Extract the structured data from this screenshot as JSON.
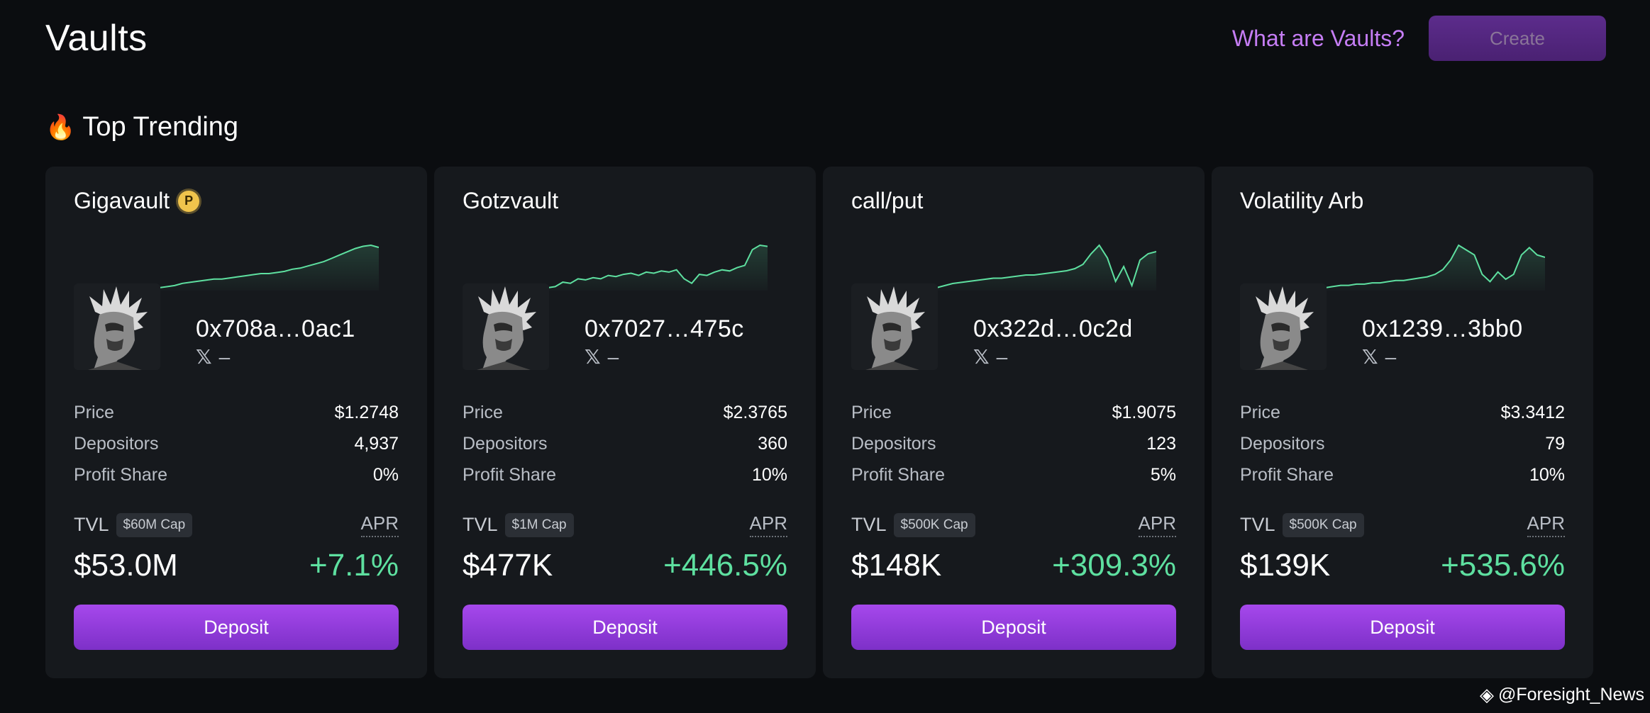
{
  "header": {
    "title": "Vaults",
    "what_link": "What are Vaults?",
    "create_label": "Create"
  },
  "section": {
    "icon": "fire-icon",
    "title": "Top Trending"
  },
  "cards": [
    {
      "name": "Gigavault",
      "badge": "P",
      "address": "0x708a…0ac1",
      "social_handle": "–",
      "price_label": "Price",
      "price": "$1.2748",
      "depositors_label": "Depositors",
      "depositors": "4,937",
      "profit_label": "Profit Share",
      "profit": "0%",
      "tvl_label": "TVL",
      "cap": "$60M Cap",
      "apr_label": "APR",
      "tvl": "$53.0M",
      "apr": "+7.1%",
      "deposit_label": "Deposit",
      "sparkline": [
        4,
        5,
        6,
        8,
        9,
        10,
        11,
        12,
        12,
        13,
        14,
        15,
        16,
        17,
        17,
        18,
        19,
        21,
        22,
        24,
        26,
        28,
        31,
        34,
        37,
        40,
        42,
        43,
        41
      ]
    },
    {
      "name": "Gotzvault",
      "address": "0x7027…475c",
      "social_handle": "–",
      "price_label": "Price",
      "price": "$2.3765",
      "depositors_label": "Depositors",
      "depositors": "360",
      "profit_label": "Profit Share",
      "profit": "10%",
      "tvl_label": "TVL",
      "cap": "$1M Cap",
      "apr_label": "APR",
      "tvl": "$477K",
      "apr": "+446.5%",
      "deposit_label": "Deposit",
      "sparkline": [
        4,
        5,
        9,
        8,
        12,
        11,
        13,
        12,
        15,
        14,
        16,
        17,
        15,
        18,
        17,
        19,
        18,
        20,
        12,
        8,
        16,
        15,
        18,
        20,
        19,
        22,
        24,
        38,
        42,
        41
      ]
    },
    {
      "name": "call/put",
      "address": "0x322d…0c2d",
      "social_handle": "–",
      "price_label": "Price",
      "price": "$1.9075",
      "depositors_label": "Depositors",
      "depositors": "123",
      "profit_label": "Profit Share",
      "profit": "5%",
      "tvl_label": "TVL",
      "cap": "$500K Cap",
      "apr_label": "APR",
      "tvl": "$148K",
      "apr": "+309.3%",
      "deposit_label": "Deposit",
      "sparkline": [
        2,
        4,
        6,
        7,
        8,
        9,
        10,
        11,
        11,
        12,
        13,
        14,
        14,
        15,
        16,
        17,
        18,
        20,
        24,
        34,
        42,
        30,
        8,
        22,
        4,
        28,
        34,
        36
      ]
    },
    {
      "name": "Volatility Arb",
      "address": "0x1239…3bb0",
      "social_handle": "–",
      "price_label": "Price",
      "price": "$3.3412",
      "depositors_label": "Depositors",
      "depositors": "79",
      "profit_label": "Profit Share",
      "profit": "10%",
      "tvl_label": "TVL",
      "cap": "$500K Cap",
      "apr_label": "APR",
      "tvl": "$139K",
      "apr": "+535.6%",
      "deposit_label": "Deposit",
      "sparkline": [
        3,
        4,
        5,
        5,
        6,
        6,
        7,
        7,
        8,
        9,
        9,
        10,
        11,
        12,
        14,
        18,
        26,
        38,
        34,
        30,
        14,
        8,
        16,
        10,
        14,
        30,
        36,
        30,
        28
      ]
    }
  ],
  "watermark": {
    "icon": "binance-icon",
    "text": "@Foresight_News"
  },
  "colors": {
    "accent": "#a648ec",
    "positive": "#5ee0a0",
    "link": "#c57df4"
  }
}
